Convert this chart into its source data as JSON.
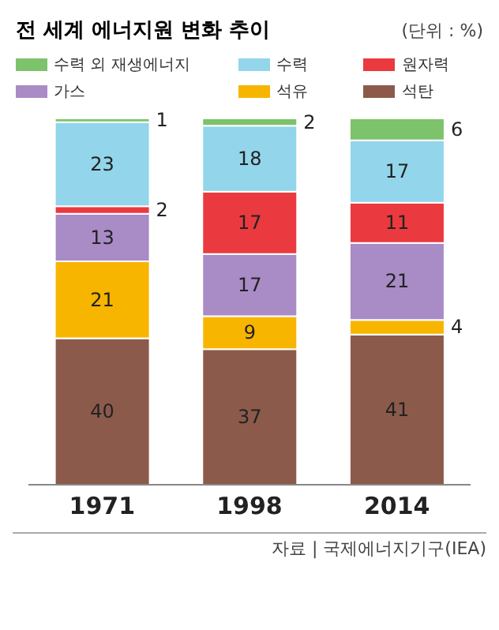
{
  "chart_data": {
    "type": "bar",
    "title": "전 세계 에너지원 변화 추이",
    "annotations": [
      "(단위 : %)",
      "자료 | 국제에너지기구(IEA)"
    ],
    "categories": [
      "1971",
      "1998",
      "2014"
    ],
    "stacked": true,
    "data_labels": true,
    "legend": "top",
    "tick_labels": "x",
    "grid": false,
    "series": [
      {
        "name": "석탄",
        "color": "#8c5a4b",
        "values": [
          40,
          37,
          41
        ]
      },
      {
        "name": "석유",
        "color": "#f7b500",
        "values": [
          21,
          9,
          4
        ]
      },
      {
        "name": "가스",
        "color": "#a98bc6",
        "values": [
          13,
          17,
          21
        ]
      },
      {
        "name": "원자력",
        "color": "#ea3a3f",
        "values": [
          2,
          17,
          11
        ]
      },
      {
        "name": "수력",
        "color": "#93d5ea",
        "values": [
          23,
          18,
          17
        ]
      },
      {
        "name": "수력 외 재생에너지",
        "color": "#7dc36b",
        "values": [
          1,
          2,
          6
        ]
      }
    ]
  }
}
